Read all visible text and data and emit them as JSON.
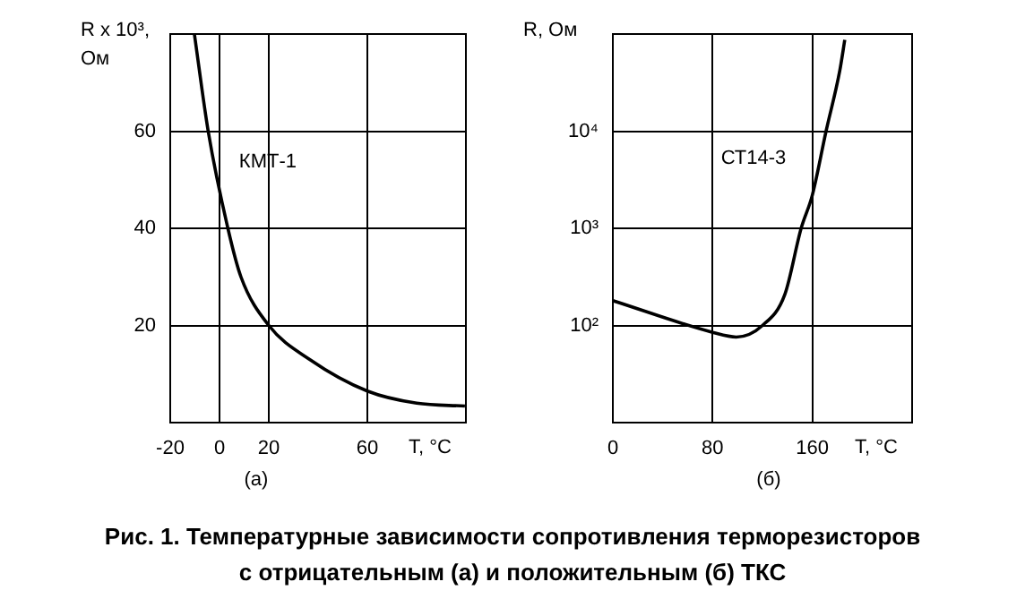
{
  "chart_data": [
    {
      "type": "line",
      "xlabel": "T, °C",
      "ylabel": "R x 10³, Ом",
      "xlim": [
        -20,
        100
      ],
      "xticks": [
        -20,
        0,
        20,
        60
      ],
      "ylim": [
        0,
        80
      ],
      "yticks": [
        20,
        40,
        60
      ],
      "grid": true,
      "marker": "none",
      "line_style": "solid",
      "series": [
        {
          "color": "#000000",
          "x": [
            -10.2,
            -4.6,
            3.4,
            8.7,
            20,
            36.6,
            60,
            80,
            99.6
          ],
          "values": [
            80,
            60,
            40,
            30,
            20,
            13,
            6.5,
            4,
            3.4
          ]
        }
      ],
      "annotations": [
        "КМТ-1",
        "(а)"
      ]
    },
    {
      "type": "line",
      "xlabel": "T, °C",
      "ylabel": "R, Ом",
      "log": "y",
      "xlim": [
        0,
        240
      ],
      "xticks": [
        0,
        80,
        160
      ],
      "ylim": [
        10,
        100000
      ],
      "yticks": [
        {
          "value": 100,
          "label": "10²"
        },
        {
          "value": 1000,
          "label": "10³"
        },
        {
          "value": 10000,
          "label": "10⁴"
        }
      ],
      "grid": true,
      "marker": "none",
      "line_style": "solid",
      "series": [
        {
          "color": "#000000",
          "x": [
            0,
            80,
            99,
            120,
            138,
            151,
            160,
            171,
            182,
            186
          ],
          "values": [
            180,
            85,
            76,
            100,
            210,
            1000,
            2200,
            10000,
            42000,
            87000
          ]
        }
      ],
      "annotations": [
        "СТ14-3",
        "(б)",
        "Рис. 1. Температурные зависимости сопротивления терморезисторов с отрицательным (а) и положительным (б) ТКС"
      ]
    }
  ]
}
